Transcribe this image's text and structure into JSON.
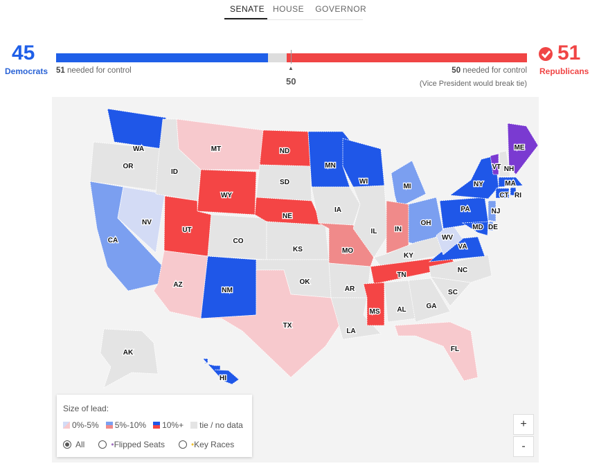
{
  "tabs": [
    {
      "label": "SENATE",
      "active": true
    },
    {
      "label": "HOUSE"
    },
    {
      "label": "GOVERNOR"
    }
  ],
  "dem": {
    "seats": 45,
    "label": "Democrats",
    "needed": "51",
    "needed_text": "needed for control",
    "color": "#1f5fe8"
  },
  "rep": {
    "seats": 51,
    "label": "Republicans",
    "needed": "50",
    "needed_text": "needed for control",
    "note": "(Vice President would break tie)",
    "color": "#f04545"
  },
  "midpoint": "50",
  "colors": {
    "D3": "#1f57e8",
    "D2": "#7b9ff0",
    "D1": "#d3dbf5",
    "R3": "#f44545",
    "R2": "#f08a8a",
    "R1": "#f7c9cd",
    "N": "#e4e4e4",
    "I": "#7a3ad1"
  },
  "states": [
    {
      "abbr": "WA",
      "r": "D3"
    },
    {
      "abbr": "OR",
      "r": "N"
    },
    {
      "abbr": "CA",
      "r": "D2"
    },
    {
      "abbr": "NV",
      "r": "D1"
    },
    {
      "abbr": "ID",
      "r": "N"
    },
    {
      "abbr": "MT",
      "r": "R1"
    },
    {
      "abbr": "WY",
      "r": "R3"
    },
    {
      "abbr": "UT",
      "r": "R3"
    },
    {
      "abbr": "AZ",
      "r": "R1"
    },
    {
      "abbr": "CO",
      "r": "N"
    },
    {
      "abbr": "NM",
      "r": "D3"
    },
    {
      "abbr": "ND",
      "r": "R3"
    },
    {
      "abbr": "SD",
      "r": "N"
    },
    {
      "abbr": "NE",
      "r": "R3"
    },
    {
      "abbr": "KS",
      "r": "N"
    },
    {
      "abbr": "OK",
      "r": "N"
    },
    {
      "abbr": "TX",
      "r": "R1"
    },
    {
      "abbr": "MN",
      "r": "D3"
    },
    {
      "abbr": "IA",
      "r": "N"
    },
    {
      "abbr": "MO",
      "r": "R2"
    },
    {
      "abbr": "AR",
      "r": "N"
    },
    {
      "abbr": "LA",
      "r": "N"
    },
    {
      "abbr": "WI",
      "r": "D3"
    },
    {
      "abbr": "IL",
      "r": "N"
    },
    {
      "abbr": "MI",
      "r": "D2"
    },
    {
      "abbr": "IN",
      "r": "R2"
    },
    {
      "abbr": "OH",
      "r": "D2"
    },
    {
      "abbr": "KY",
      "r": "N"
    },
    {
      "abbr": "TN",
      "r": "R3"
    },
    {
      "abbr": "MS",
      "r": "R3"
    },
    {
      "abbr": "AL",
      "r": "N"
    },
    {
      "abbr": "GA",
      "r": "N"
    },
    {
      "abbr": "FL",
      "r": "R1"
    },
    {
      "abbr": "SC",
      "r": "N"
    },
    {
      "abbr": "NC",
      "r": "N"
    },
    {
      "abbr": "VA",
      "r": "D3"
    },
    {
      "abbr": "WV",
      "r": "D1"
    },
    {
      "abbr": "PA",
      "r": "D3"
    },
    {
      "abbr": "NY",
      "r": "D3"
    },
    {
      "abbr": "VT",
      "r": "I"
    },
    {
      "abbr": "NH",
      "r": "N"
    },
    {
      "abbr": "ME",
      "r": "I"
    },
    {
      "abbr": "MA",
      "r": "D3"
    },
    {
      "abbr": "CT",
      "r": "D3"
    },
    {
      "abbr": "RI",
      "r": "D3"
    },
    {
      "abbr": "NJ",
      "r": "D2"
    },
    {
      "abbr": "DE",
      "r": "D2"
    },
    {
      "abbr": "MD",
      "r": "D3"
    },
    {
      "abbr": "AK",
      "r": "N"
    },
    {
      "abbr": "HI",
      "r": "D3"
    }
  ],
  "legend": {
    "title": "Size of lead:",
    "items": [
      "0%-5%",
      "5%-10%",
      "10%+",
      "tie / no data"
    ],
    "filters": [
      {
        "label": "All",
        "selected": true
      },
      {
        "label": "Flipped Seats"
      },
      {
        "label": "Key Races"
      }
    ]
  },
  "zoom": {
    "in": "+",
    "out": "-"
  }
}
